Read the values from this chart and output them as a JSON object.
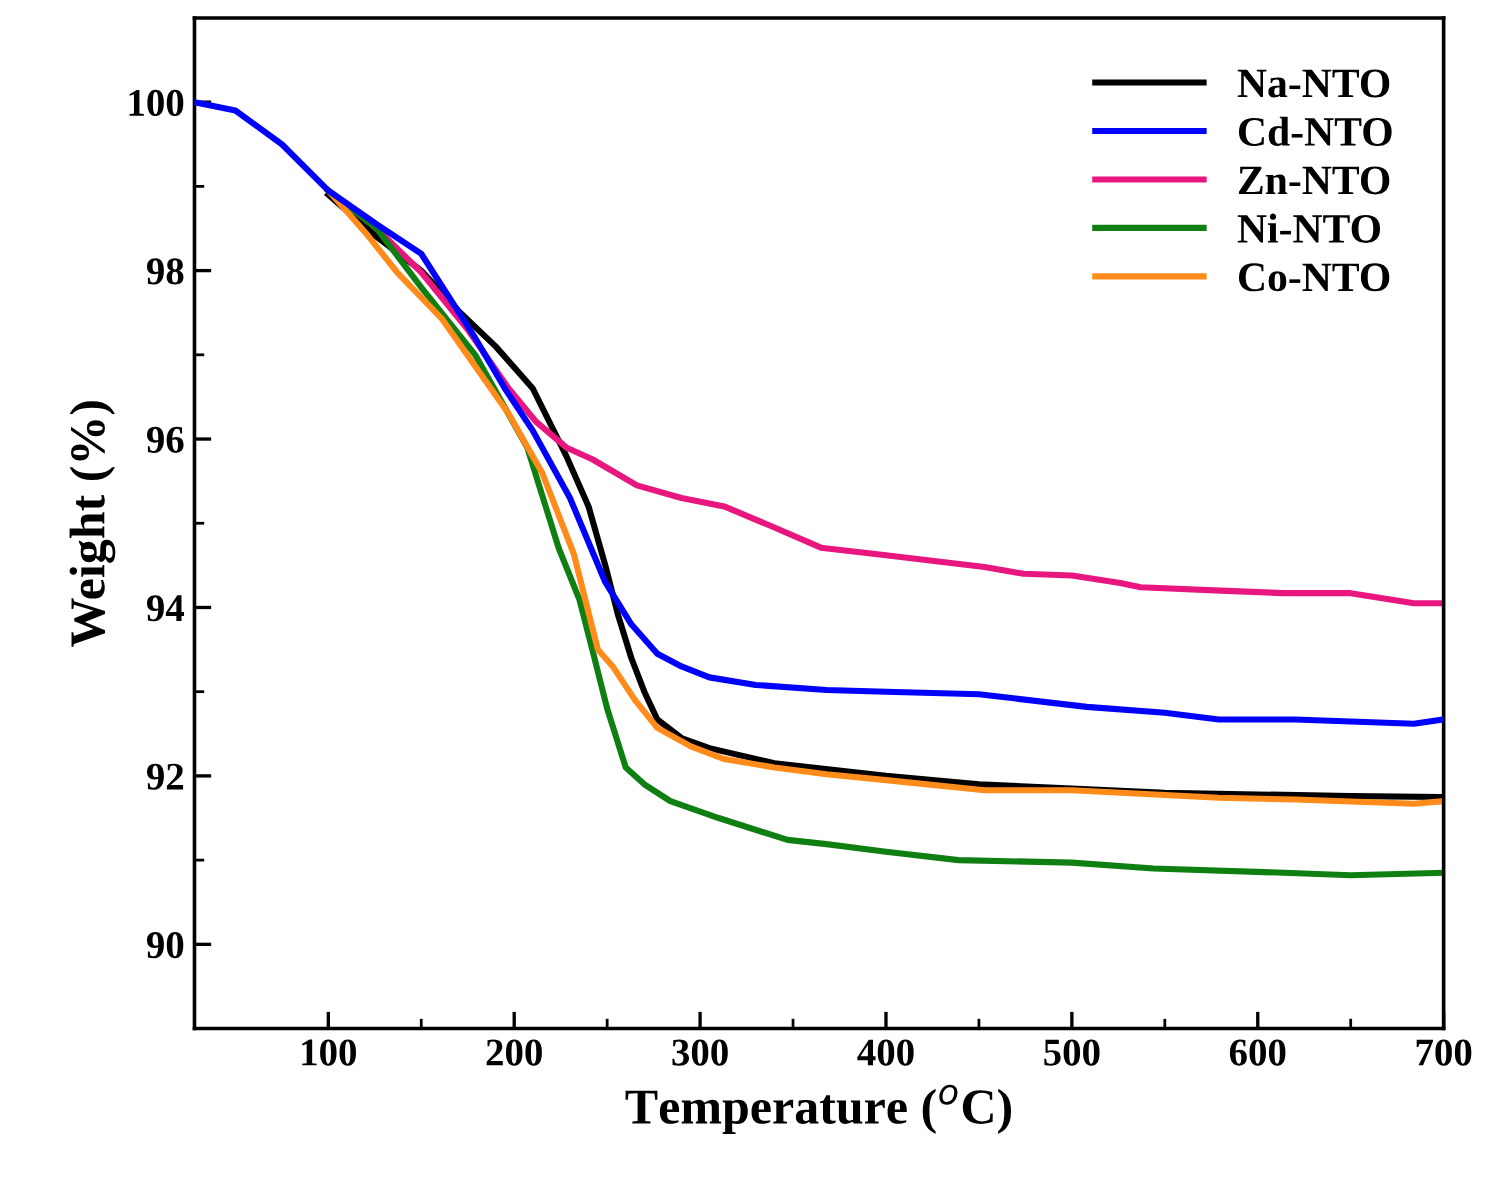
{
  "chart_data": {
    "type": "line",
    "xlabel": "Temperature ($^{o}$C)",
    "ylabel": "Weight (%)",
    "xlim": [
      28,
      700
    ],
    "ylim": [
      89,
      101
    ],
    "xticks": [
      100,
      200,
      300,
      400,
      500,
      600,
      700
    ],
    "yticks": [
      90,
      92,
      94,
      96,
      98,
      100
    ],
    "legend": "top right",
    "grid": false,
    "line_style": "solid",
    "marker": "none",
    "series": [
      {
        "name": "Na-NTO",
        "color": "#000000",
        "x": [
          100,
          126,
          150,
          171,
          190,
          210,
          228,
          240,
          249,
          256,
          263,
          270,
          277,
          290,
          305,
          340,
          400,
          450,
          500,
          550,
          600,
          650,
          700
        ],
        "values": [
          98.9,
          98.4,
          98.0,
          97.5,
          97.1,
          96.6,
          95.8,
          95.2,
          94.5,
          93.9,
          93.4,
          93.0,
          92.67,
          92.45,
          92.33,
          92.15,
          92.0,
          91.9,
          91.85,
          91.8,
          91.78,
          91.76,
          91.75
        ]
      },
      {
        "name": "Cd-NTO",
        "color": "#0000ff",
        "x": [
          28,
          50,
          75,
          100,
          126,
          150,
          179,
          195,
          210,
          230,
          249,
          263,
          277,
          290,
          305,
          330,
          368,
          400,
          450,
          508,
          550,
          579,
          620,
          684,
          700
        ],
        "values": [
          100.0,
          99.9,
          99.5,
          98.95,
          98.55,
          98.2,
          97.2,
          96.6,
          96.1,
          95.3,
          94.3,
          93.8,
          93.45,
          93.3,
          93.17,
          93.08,
          93.02,
          93.0,
          92.97,
          92.82,
          92.75,
          92.67,
          92.67,
          92.62,
          92.67
        ]
      },
      {
        "name": "Zn-NTO",
        "color": "#e8177f",
        "x": [
          100,
          126,
          150,
          175,
          197,
          212,
          228,
          242,
          266,
          290,
          313,
          340,
          365,
          400,
          453,
          474,
          500,
          526,
          537,
          580,
          614,
          650,
          684,
          700
        ],
        "values": [
          98.95,
          98.5,
          97.98,
          97.3,
          96.6,
          96.2,
          95.9,
          95.76,
          95.45,
          95.3,
          95.2,
          94.95,
          94.71,
          94.62,
          94.48,
          94.4,
          94.38,
          94.29,
          94.24,
          94.2,
          94.17,
          94.17,
          94.05,
          94.05
        ]
      },
      {
        "name": "Ni-NTO",
        "color": "#0f7f12",
        "x": [
          100,
          126,
          150,
          179,
          207,
          224,
          235,
          242,
          250,
          260,
          270,
          284,
          310,
          347,
          368,
          400,
          439,
          500,
          544,
          614,
          650,
          700
        ],
        "values": [
          98.95,
          98.5,
          97.8,
          97.0,
          95.9,
          94.7,
          94.1,
          93.5,
          92.8,
          92.1,
          91.9,
          91.7,
          91.5,
          91.24,
          91.19,
          91.1,
          91.0,
          90.97,
          90.9,
          90.85,
          90.82,
          90.85
        ]
      },
      {
        "name": "Co-NTO",
        "color": "#ff8c1a",
        "x": [
          100,
          120,
          137,
          161,
          197,
          215,
          232,
          245,
          253,
          265,
          277,
          295,
          313,
          340,
          368,
          400,
          453,
          500,
          579,
          620,
          684,
          700
        ],
        "values": [
          98.95,
          98.45,
          97.98,
          97.43,
          96.3,
          95.6,
          94.64,
          93.5,
          93.3,
          92.9,
          92.57,
          92.35,
          92.2,
          92.1,
          92.02,
          91.95,
          91.83,
          91.83,
          91.74,
          91.72,
          91.67,
          91.7
        ]
      }
    ]
  }
}
